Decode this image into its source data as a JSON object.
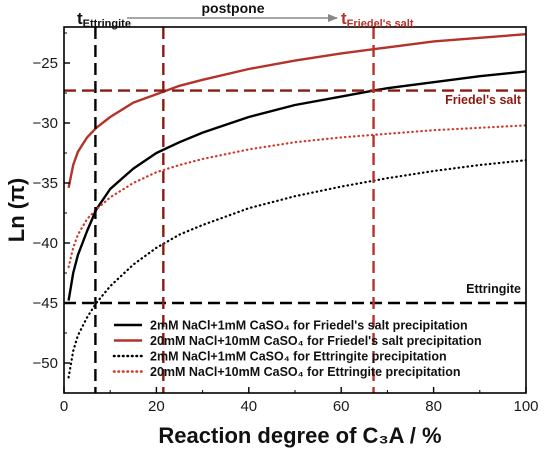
{
  "chart_data": {
    "type": "line",
    "title": "",
    "xlabel": "Reaction degree of C₃A / %",
    "ylabel": "Ln (π)",
    "xlim": [
      0,
      100
    ],
    "ylim": [
      -52.5,
      -22
    ],
    "xticks": [
      0,
      20,
      40,
      60,
      80,
      100
    ],
    "yticks": [
      -50,
      -45,
      -40,
      -35,
      -30,
      -25
    ],
    "grid": false,
    "legend_position": "bottom-center",
    "series": [
      {
        "name": "2mM NaCl+1mM CaSO₄ for Friedel's salt precipitation",
        "color": "#000000",
        "style": "solid",
        "x": [
          1,
          2,
          3,
          5,
          7,
          10,
          15,
          20,
          25,
          30,
          40,
          50,
          60,
          67,
          70,
          80,
          90,
          100
        ],
        "y": [
          -44.8,
          -42.5,
          -41.0,
          -39.0,
          -37.2,
          -35.5,
          -33.8,
          -32.5,
          -31.6,
          -30.8,
          -29.5,
          -28.5,
          -27.8,
          -27.3,
          -27.1,
          -26.6,
          -26.1,
          -25.7
        ]
      },
      {
        "name": "20mM NaCl+10mM CaSO₄ for Friedel's salt precipitation",
        "color": "#b5322b",
        "style": "solid",
        "x": [
          1,
          2,
          3,
          5,
          7,
          10,
          15,
          20,
          21.5,
          25,
          30,
          40,
          50,
          60,
          70,
          80,
          90,
          100
        ],
        "y": [
          -35.4,
          -33.5,
          -32.4,
          -31.2,
          -30.4,
          -29.5,
          -28.3,
          -27.6,
          -27.4,
          -26.9,
          -26.4,
          -25.5,
          -24.8,
          -24.2,
          -23.7,
          -23.2,
          -22.9,
          -22.6
        ]
      },
      {
        "name": "2mM NaCl+1mM CaSO₄ for Ettringite precipitation",
        "color": "#000000",
        "style": "dotted",
        "x": [
          1,
          2,
          3,
          5,
          7,
          10,
          15,
          20,
          25,
          30,
          40,
          50,
          60,
          70,
          80,
          90,
          100
        ],
        "y": [
          -51.2,
          -49.0,
          -47.7,
          -46.2,
          -45.0,
          -43.6,
          -41.8,
          -40.4,
          -39.3,
          -38.5,
          -37.1,
          -36.1,
          -35.3,
          -34.6,
          -34.0,
          -33.5,
          -33.1
        ]
      },
      {
        "name": "20mM NaCl+10mM CaSO₄ for Ettringite precipitation",
        "color": "#cc3b2a",
        "style": "dotted",
        "x": [
          1,
          2,
          3,
          5,
          7,
          10,
          15,
          20,
          25,
          30,
          40,
          50,
          60,
          70,
          80,
          90,
          100
        ],
        "y": [
          -42.0,
          -40.4,
          -39.3,
          -38.0,
          -37.2,
          -36.2,
          -35.0,
          -34.1,
          -33.5,
          -33.0,
          -32.2,
          -31.6,
          -31.2,
          -30.9,
          -30.6,
          -30.4,
          -30.2
        ]
      }
    ],
    "reference_lines": [
      {
        "orientation": "horizontal",
        "y": -27.3,
        "label": "Friedel's salt",
        "color": "#8b1a10",
        "style": "dashed"
      },
      {
        "orientation": "horizontal",
        "y": -45.0,
        "label": "Ettringite",
        "color": "#000000",
        "style": "dashed"
      },
      {
        "orientation": "vertical",
        "x": 6.8,
        "color": "#000000",
        "style": "dashed"
      },
      {
        "orientation": "vertical",
        "x": 21.5,
        "color": "#8b1a10",
        "style": "dashed"
      },
      {
        "orientation": "vertical",
        "x": 67,
        "color": "#b5322b",
        "style": "dashed"
      }
    ],
    "annotations": {
      "t_ettringite": {
        "main": "t",
        "sub": "Ettringite"
      },
      "t_friedel": {
        "main": "t",
        "sub": "Friedel's salt"
      },
      "postpone": "postpone"
    }
  }
}
